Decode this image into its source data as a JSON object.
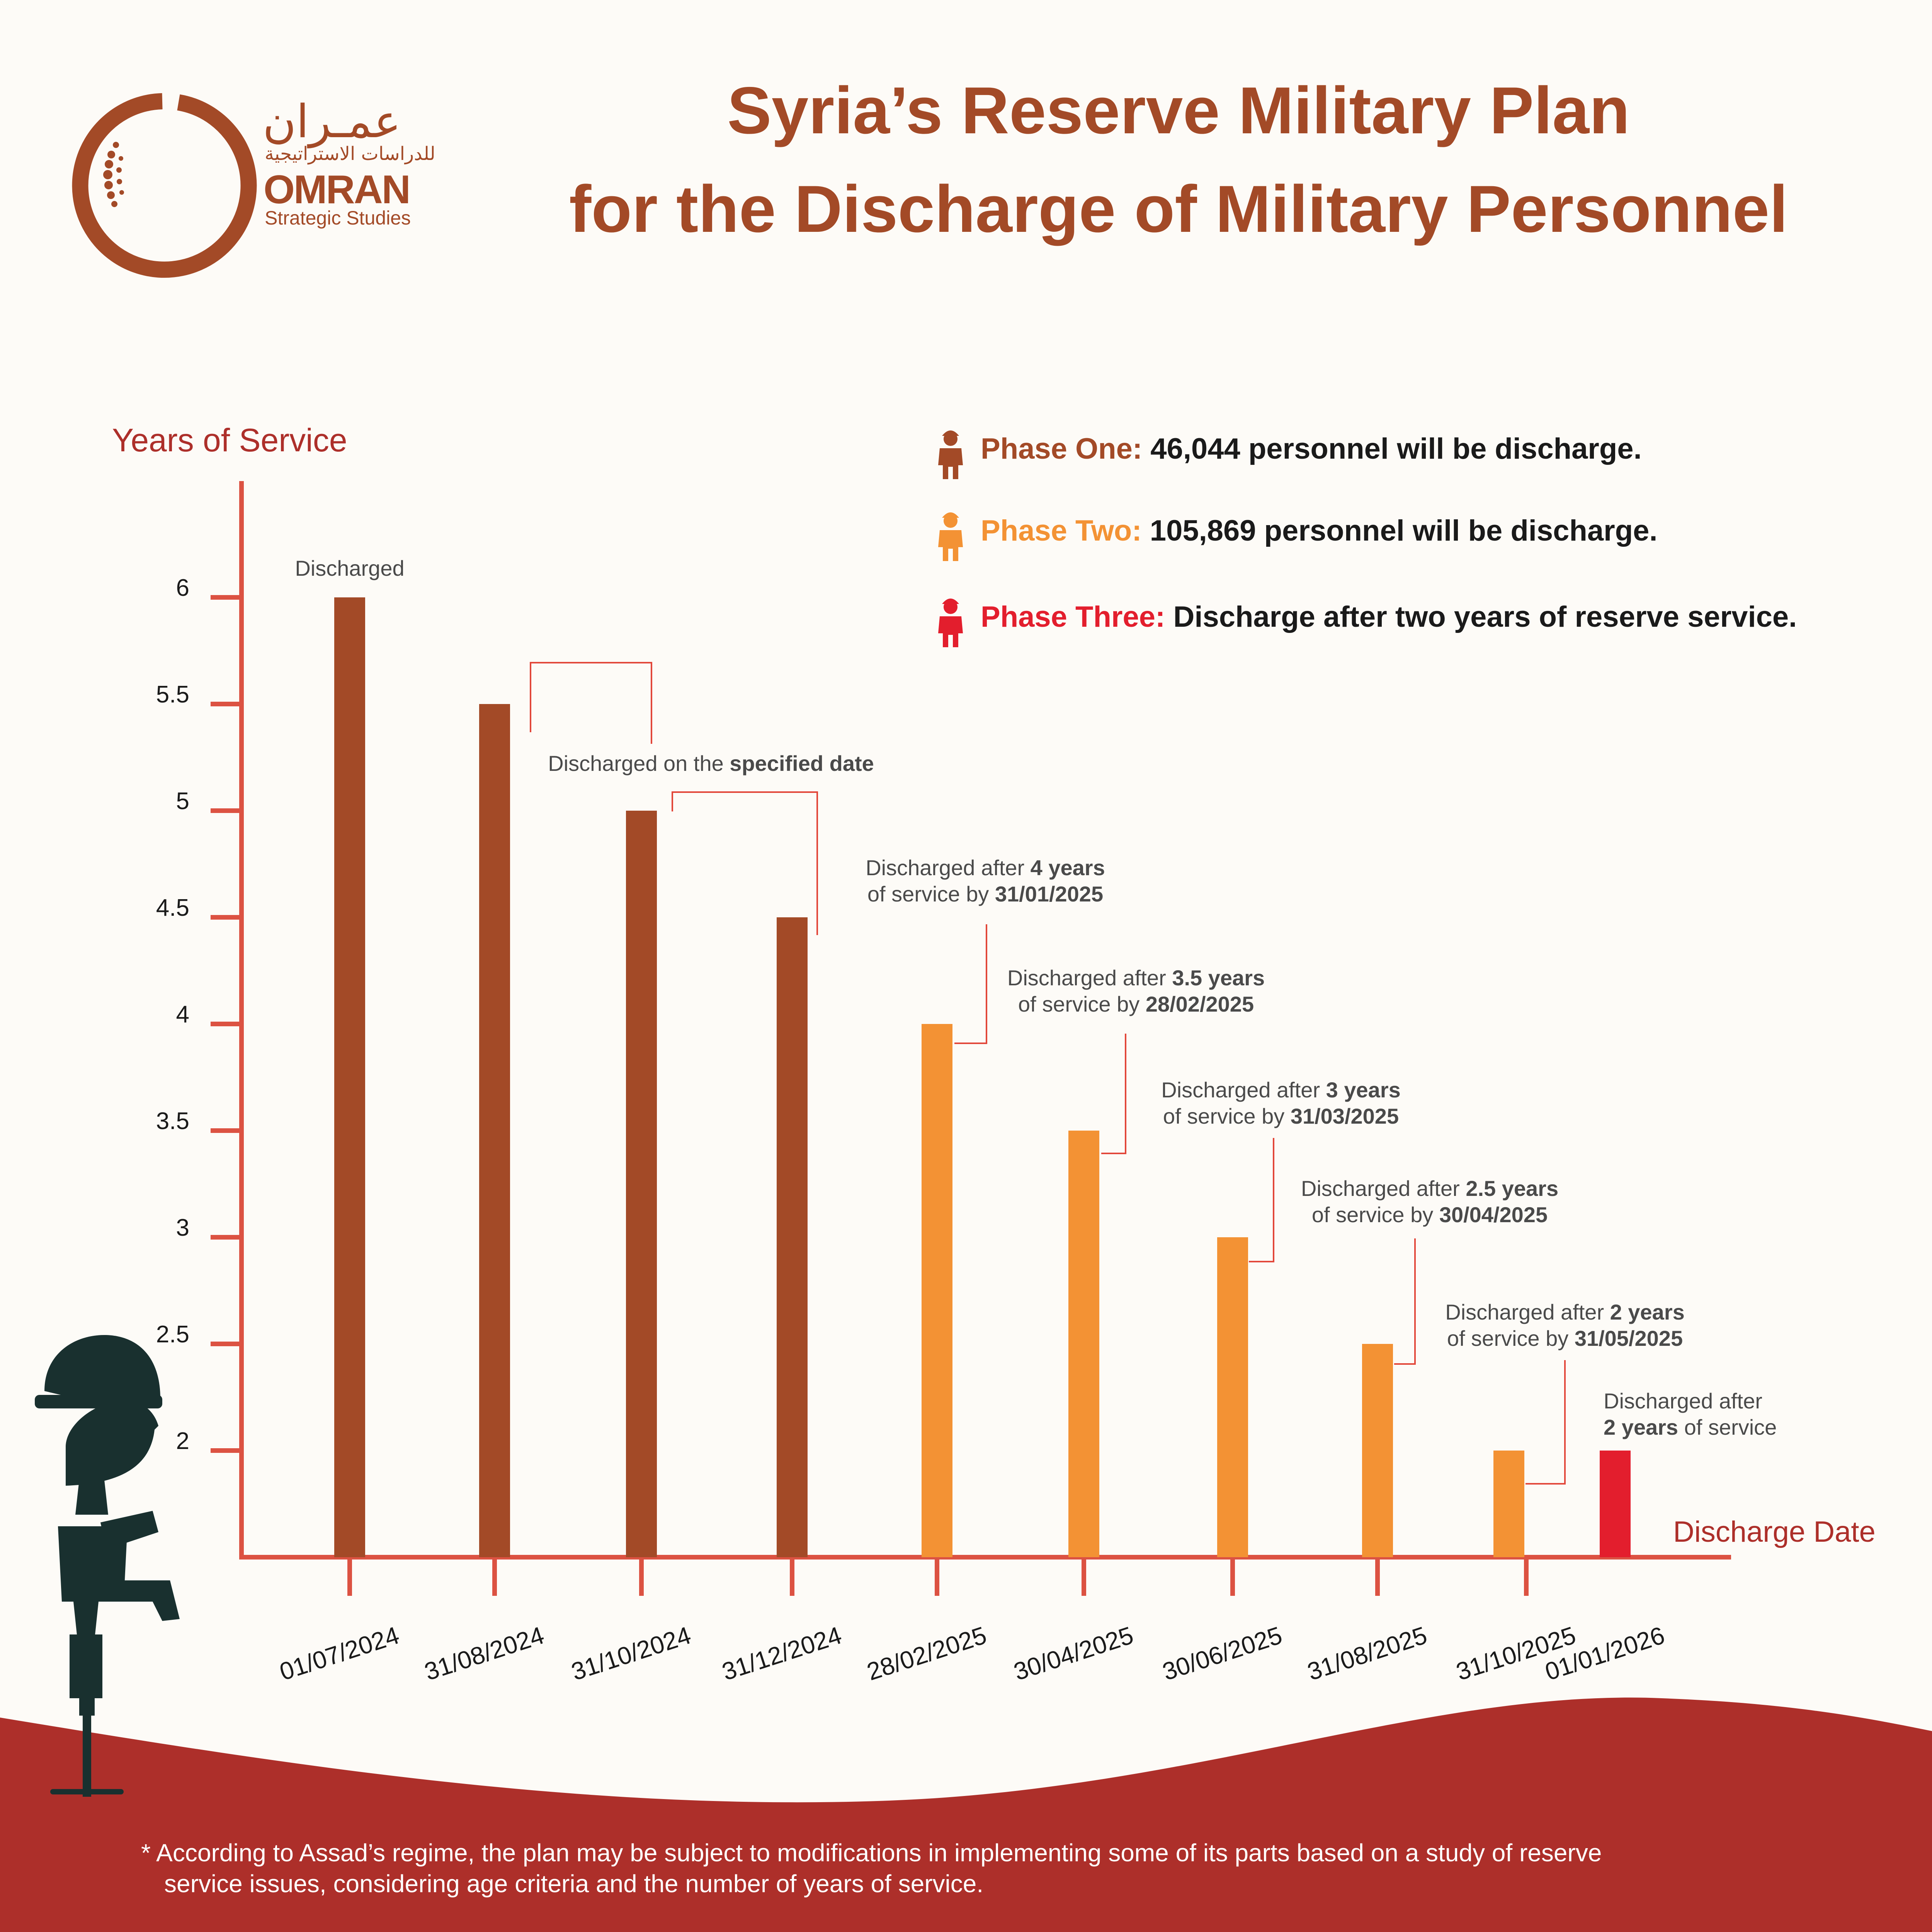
{
  "title": {
    "line1": "Syria’s Reserve Military Plan",
    "line2": "for the Discharge of Military Personnel"
  },
  "logo": {
    "arabic_name": "عمـران",
    "arabic_subtitle": "للدراسات الاستراتيجية",
    "name": "OMRAN",
    "subtitle": "Strategic Studies"
  },
  "legend": [
    {
      "phase_label": "Phase One:",
      "text": "46,044 personnel will be discharge.",
      "color": "#a34a27",
      "icon": "soldier-icon"
    },
    {
      "phase_label": "Phase Two:",
      "text": "105,869 personnel will be discharge.",
      "color": "#f39234",
      "icon": "soldier-icon"
    },
    {
      "phase_label": "Phase Three:",
      "text": "Discharge after two years of reserve service.",
      "color": "#e31e2d",
      "icon": "soldier-icon"
    }
  ],
  "colors": {
    "phase_one": "#a34a27",
    "phase_two": "#f39234",
    "phase_three": "#e31e2d",
    "axis": "#dc5242",
    "band": "#ad2f2a"
  },
  "chart_data": {
    "type": "bar",
    "ylabel": "Years of Service",
    "xlabel": "Discharge Date",
    "ylim": [
      1.5,
      6.5
    ],
    "yticks": [
      {
        "value": 2,
        "label": "2"
      },
      {
        "value": 2.5,
        "label": "2.5"
      },
      {
        "value": 3,
        "label": "3"
      },
      {
        "value": 3.5,
        "label": "3.5"
      },
      {
        "value": 4,
        "label": "4"
      },
      {
        "value": 4.5,
        "label": "4.5"
      },
      {
        "value": 5,
        "label": "5"
      },
      {
        "value": 5.5,
        "label": "5.5"
      },
      {
        "value": 6,
        "label": "6"
      }
    ],
    "categories": [
      "01/07/2024",
      "31/08/2024",
      "31/10/2024",
      "31/12/2024",
      "28/02/2025",
      "30/04/2025",
      "30/06/2025",
      "31/08/2025",
      "31/10/2025",
      "01/01/2026"
    ],
    "values": [
      6,
      5.5,
      5,
      4.5,
      4,
      3.5,
      3,
      2.5,
      2,
      2
    ],
    "phase": [
      1,
      1,
      1,
      1,
      2,
      2,
      2,
      2,
      2,
      3
    ],
    "annotations": [
      {
        "lines": [
          [
            {
              "t": "Discharged",
              "b": false
            }
          ]
        ]
      },
      {
        "lines": [
          [
            {
              "t": "Discharged on the ",
              "b": false
            },
            {
              "t": "specified date",
              "b": true
            }
          ]
        ]
      },
      {
        "lines": [
          [
            {
              "t": "Discharged after ",
              "b": false
            },
            {
              "t": "4 years",
              "b": true
            }
          ],
          [
            {
              "t": "of service by ",
              "b": false
            },
            {
              "t": "31/01/2025",
              "b": true
            }
          ]
        ]
      },
      {
        "lines": [
          [
            {
              "t": "Discharged after ",
              "b": false
            },
            {
              "t": "3.5 years",
              "b": true
            }
          ],
          [
            {
              "t": "of service by ",
              "b": false
            },
            {
              "t": "28/02/2025",
              "b": true
            }
          ]
        ]
      },
      {
        "lines": [
          [
            {
              "t": "Discharged after ",
              "b": false
            },
            {
              "t": "3 years",
              "b": true
            }
          ],
          [
            {
              "t": "of service by ",
              "b": false
            },
            {
              "t": "31/03/2025",
              "b": true
            }
          ]
        ]
      },
      {
        "lines": [
          [
            {
              "t": "Discharged after ",
              "b": false
            },
            {
              "t": "2.5 years",
              "b": true
            }
          ],
          [
            {
              "t": "of service by ",
              "b": false
            },
            {
              "t": "30/04/2025",
              "b": true
            }
          ]
        ]
      },
      {
        "lines": [
          [
            {
              "t": "Discharged after ",
              "b": false
            },
            {
              "t": "2 years",
              "b": true
            }
          ],
          [
            {
              "t": "of service by ",
              "b": false
            },
            {
              "t": "31/05/2025",
              "b": true
            }
          ]
        ]
      },
      {
        "lines": [
          [
            {
              "t": "Discharged after",
              "b": false
            }
          ],
          [
            {
              "t": "2 years",
              "b": true
            },
            {
              "t": " of service",
              "b": false
            }
          ]
        ]
      }
    ]
  },
  "footnote": {
    "line1": "* According to Assad’s regime, the plan may be subject to modifications in implementing some of its parts based on a study of reserve",
    "line2": "service issues, considering age criteria and the number of years of service."
  }
}
